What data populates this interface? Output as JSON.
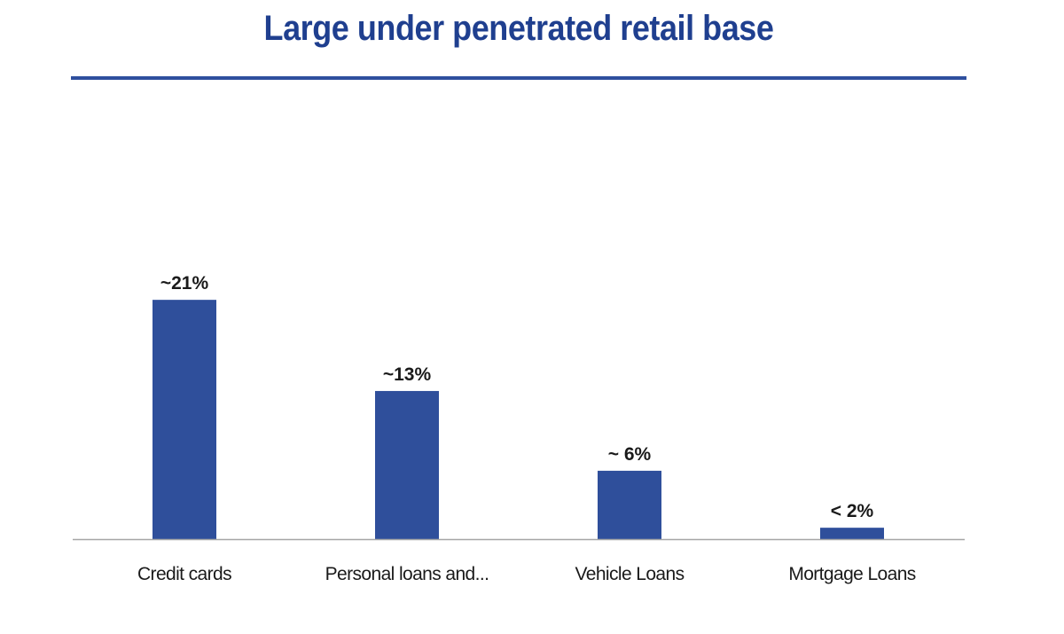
{
  "slide": {
    "title": "Large under penetrated retail base"
  },
  "colors": {
    "title": "#1f3f8f",
    "rule": "#2e4f9e",
    "bar": "#2f4f9b",
    "axis": "#a6a6a6"
  },
  "chart_data": {
    "type": "bar",
    "title": "",
    "xlabel": "",
    "ylabel": "",
    "categories": [
      "Credit cards",
      "Personal loans and...",
      "Vehicle Loans",
      "Mortgage Loans"
    ],
    "values": [
      21,
      13,
      6,
      1
    ],
    "data_labels": [
      "~21%",
      "~13%",
      "~ 6%",
      "< 2%"
    ],
    "ylim": [
      0,
      30
    ],
    "grid": false,
    "legend": "none"
  }
}
